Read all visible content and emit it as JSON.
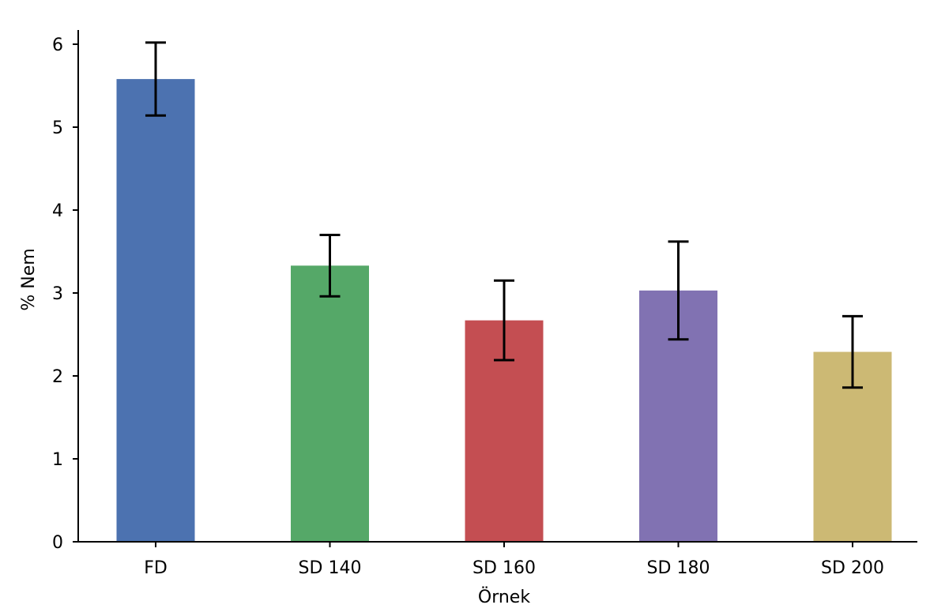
{
  "chart_data": {
    "type": "bar",
    "title": "",
    "xlabel": "Örnek",
    "ylabel": "% Nem",
    "categories": [
      "FD",
      "SD 140",
      "SD 160",
      "SD 180",
      "SD 200"
    ],
    "values": [
      5.58,
      3.33,
      2.67,
      3.03,
      2.29
    ],
    "errors": [
      0.44,
      0.37,
      0.48,
      0.59,
      0.43
    ],
    "bar_colors": [
      "#4c72b0",
      "#55a868",
      "#c44e52",
      "#8172b2",
      "#ccb974"
    ],
    "ylim": [
      0,
      6.18
    ],
    "yticks": [
      0,
      1,
      2,
      3,
      4,
      5,
      6
    ],
    "ytick_labels": [
      "0",
      "1",
      "2",
      "3",
      "4",
      "5",
      "6"
    ],
    "grid": false,
    "legend": "none"
  }
}
